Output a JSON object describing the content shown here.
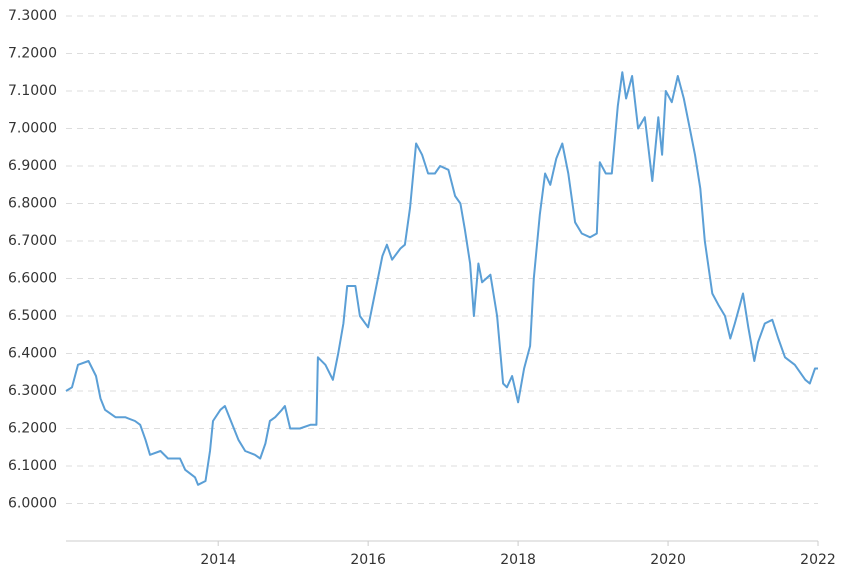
{
  "chart_data": {
    "type": "line",
    "xlim": [
      2011.97,
      2022
    ],
    "xticks": [
      2014,
      2016,
      2018,
      2020,
      2022
    ],
    "ylim": [
      5.9,
      7.3
    ],
    "yticks": [
      {
        "value": 6.0,
        "label": "6.0000"
      },
      {
        "value": 6.1,
        "label": "6.1000"
      },
      {
        "value": 6.2,
        "label": "6.2000"
      },
      {
        "value": 6.3,
        "label": "6.3000"
      },
      {
        "value": 6.4,
        "label": "6.4000"
      },
      {
        "value": 6.5,
        "label": "6.5000"
      },
      {
        "value": 6.6,
        "label": "6.6000"
      },
      {
        "value": 6.7,
        "label": "6.7000"
      },
      {
        "value": 6.8,
        "label": "6.8000"
      },
      {
        "value": 6.9,
        "label": "6.9000"
      },
      {
        "value": 7.0,
        "label": "7.0000"
      },
      {
        "value": 7.1,
        "label": "7.1000"
      },
      {
        "value": 7.2,
        "label": "7.2000"
      },
      {
        "value": 7.3,
        "label": "7.3000"
      }
    ],
    "grid": true,
    "series": [
      {
        "color": "#5b9fd6",
        "x": [
          2011.97,
          2012.05,
          2012.13,
          2012.27,
          2012.37,
          2012.43,
          2012.49,
          2012.63,
          2012.76,
          2012.89,
          2012.96,
          2013.03,
          2013.09,
          2013.23,
          2013.33,
          2013.49,
          2013.56,
          2013.69,
          2013.73,
          2013.83,
          2013.89,
          2013.93,
          2014.03,
          2014.09,
          2014.19,
          2014.27,
          2014.36,
          2014.49,
          2014.56,
          2014.63,
          2014.69,
          2014.76,
          2014.85,
          2014.89,
          2014.96,
          2015.09,
          2015.23,
          2015.31,
          2015.33,
          2015.43,
          2015.53,
          2015.6,
          2015.67,
          2015.72,
          2015.83,
          2015.89,
          2016.0,
          2016.09,
          2016.19,
          2016.25,
          2016.32,
          2016.43,
          2016.49,
          2016.56,
          2016.64,
          2016.72,
          2016.8,
          2016.89,
          2016.96,
          2017.07,
          2017.16,
          2017.23,
          2017.29,
          2017.36,
          2017.41,
          2017.47,
          2017.52,
          2017.63,
          2017.72,
          2017.8,
          2017.85,
          2017.92,
          2018.0,
          2018.08,
          2018.16,
          2018.21,
          2018.29,
          2018.36,
          2018.43,
          2018.51,
          2018.59,
          2018.67,
          2018.76,
          2018.85,
          2018.96,
          2019.05,
          2019.09,
          2019.17,
          2019.25,
          2019.33,
          2019.39,
          2019.44,
          2019.52,
          2019.6,
          2019.69,
          2019.79,
          2019.87,
          2019.92,
          2019.97,
          2020.05,
          2020.13,
          2020.21,
          2020.29,
          2020.36,
          2020.43,
          2020.49,
          2020.59,
          2020.67,
          2020.76,
          2020.83,
          2020.89,
          2020.96,
          2021.0,
          2021.07,
          2021.15,
          2021.2,
          2021.29,
          2021.39,
          2021.47,
          2021.56,
          2021.69,
          2021.83,
          2021.89,
          2021.96,
          2022.0
        ],
        "values": [
          6.3,
          6.31,
          6.37,
          6.38,
          6.34,
          6.28,
          6.25,
          6.23,
          6.23,
          6.22,
          6.21,
          6.17,
          6.13,
          6.14,
          6.12,
          6.12,
          6.09,
          6.07,
          6.05,
          6.06,
          6.14,
          6.22,
          6.25,
          6.26,
          6.21,
          6.17,
          6.14,
          6.13,
          6.12,
          6.16,
          6.22,
          6.23,
          6.25,
          6.26,
          6.2,
          6.2,
          6.21,
          6.21,
          6.39,
          6.37,
          6.33,
          6.4,
          6.48,
          6.58,
          6.58,
          6.5,
          6.47,
          6.56,
          6.66,
          6.69,
          6.65,
          6.68,
          6.69,
          6.79,
          6.96,
          6.93,
          6.88,
          6.88,
          6.9,
          6.89,
          6.82,
          6.8,
          6.73,
          6.64,
          6.5,
          6.64,
          6.59,
          6.61,
          6.5,
          6.32,
          6.31,
          6.34,
          6.27,
          6.36,
          6.42,
          6.6,
          6.77,
          6.88,
          6.85,
          6.92,
          6.96,
          6.88,
          6.75,
          6.72,
          6.71,
          6.72,
          6.91,
          6.88,
          6.88,
          7.06,
          7.15,
          7.08,
          7.14,
          7.0,
          7.03,
          6.86,
          7.03,
          6.93,
          7.1,
          7.07,
          7.14,
          7.08,
          7.0,
          6.93,
          6.84,
          6.7,
          6.56,
          6.53,
          6.5,
          6.44,
          6.48,
          6.53,
          6.56,
          6.47,
          6.38,
          6.43,
          6.48,
          6.49,
          6.44,
          6.39,
          6.37,
          6.33,
          6.32,
          6.36,
          6.36
        ]
      }
    ]
  }
}
